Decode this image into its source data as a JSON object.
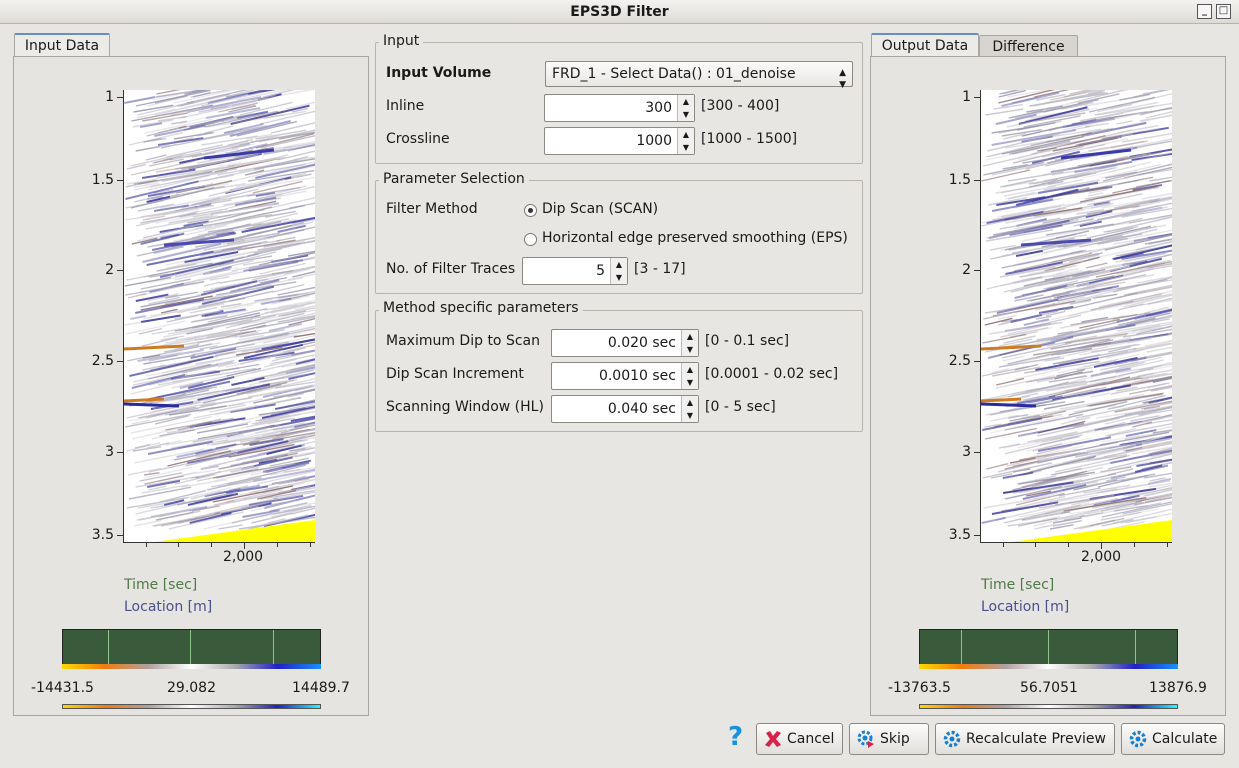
{
  "window": {
    "title": "EPS3D Filter"
  },
  "left": {
    "tab": "Input Data",
    "yticks": [
      "1",
      "1.5",
      "2",
      "2.5",
      "3",
      "3.5"
    ],
    "xtick": "2,000",
    "legend_time": "Time [sec]",
    "legend_location": "Location [m]",
    "cbar": {
      "min": "-14431.5",
      "mid": "29.082",
      "max": "14489.7"
    }
  },
  "right": {
    "tabs": [
      "Output Data",
      "Difference"
    ],
    "yticks": [
      "1",
      "1.5",
      "2",
      "2.5",
      "3",
      "3.5"
    ],
    "xtick": "2,000",
    "legend_time": "Time [sec]",
    "legend_location": "Location [m]",
    "cbar": {
      "min": "-13763.5",
      "mid": "56.7051",
      "max": "13876.9"
    }
  },
  "input_group": {
    "title": "Input",
    "volume_label": "Input Volume",
    "volume_value": "FRD_1 - Select Data() : 01_denoise",
    "inline_label": "Inline",
    "inline_value": "300",
    "inline_range": "[300 - 400]",
    "crossline_label": "Crossline",
    "crossline_value": "1000",
    "crossline_range": "[1000 - 1500]"
  },
  "param_group": {
    "title": "Parameter Selection",
    "method_label": "Filter Method",
    "option_scan": "Dip Scan (SCAN)",
    "option_eps": "Horizontal edge preserved smoothing (EPS)",
    "traces_label": "No. of Filter Traces",
    "traces_value": "5",
    "traces_range": "[3 - 17]"
  },
  "method_group": {
    "title": "Method specific parameters",
    "maxdip_label": "Maximum Dip to Scan",
    "maxdip_value": "0.020 sec",
    "maxdip_range": "[0 - 0.1 sec]",
    "dipinc_label": "Dip Scan Increment",
    "dipinc_value": "0.0010 sec",
    "dipinc_range": "[0.0001 - 0.02 sec]",
    "window_label": "Scanning Window (HL)",
    "window_value": "0.040 sec",
    "window_range": "[0 - 5 sec]"
  },
  "buttons": {
    "help": "?",
    "cancel": "Cancel",
    "skip": "Skip",
    "recalc": "Recalculate Preview",
    "calculate": "Calculate"
  },
  "colors": {
    "accent": "#6a8fbf",
    "colorbar_bg": "#3a5a3c",
    "time_label": "#4e7a45",
    "location_label": "#4a4f8e"
  }
}
